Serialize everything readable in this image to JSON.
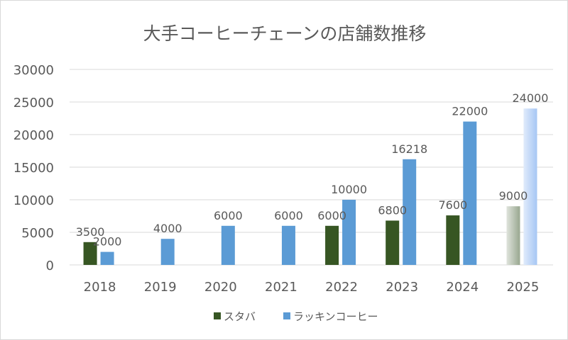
{
  "chart_data": {
    "type": "bar",
    "title": "大手コーヒーチェーンの店舗数推移",
    "xlabel": "",
    "ylabel": "",
    "ylim": [
      0,
      30000
    ],
    "yticks": [
      0,
      5000,
      10000,
      15000,
      20000,
      25000,
      30000
    ],
    "grid": true,
    "legend": "bottom",
    "categories": [
      "2018",
      "2019",
      "2020",
      "2021",
      "2022",
      "2023",
      "2024",
      "2025"
    ],
    "series": [
      {
        "name": "スタバ",
        "color": "#375623",
        "values": [
          3500,
          null,
          null,
          null,
          6000,
          6800,
          7600,
          9000
        ]
      },
      {
        "name": "ラッキンコーヒー",
        "color": "#5b9bd5",
        "values": [
          2000,
          4000,
          6000,
          6000,
          10000,
          16218,
          22000,
          24000
        ]
      }
    ],
    "highlight_faded_category": "2025"
  }
}
